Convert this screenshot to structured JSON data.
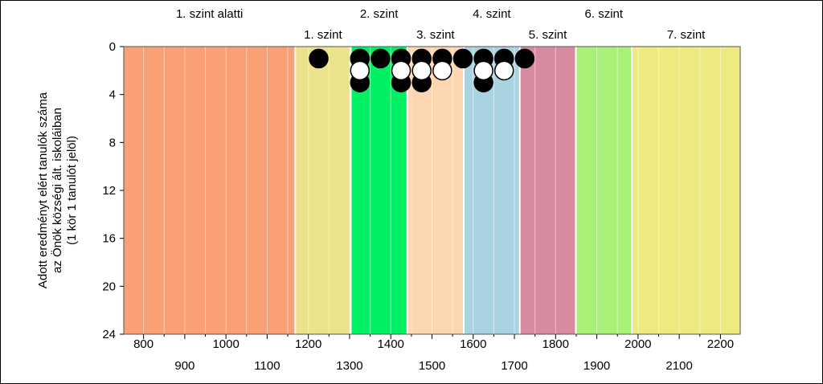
{
  "chart_data": {
    "type": "scatter",
    "ylabel_lines": [
      "Adott eredményt elért tanulók száma",
      "az Önök községi ált. iskoláiban",
      "(1 kör 1 tanulót jelöl)"
    ],
    "xlim": [
      752,
      2248
    ],
    "ylim": [
      0,
      24
    ],
    "y_inverted": true,
    "y_ticks": [
      0,
      4,
      8,
      12,
      16,
      20,
      24
    ],
    "x_ticks_upper": [
      800,
      1000,
      1200,
      1400,
      1600,
      1800,
      2000,
      2200
    ],
    "x_ticks_lower": [
      900,
      1100,
      1300,
      1500,
      1700,
      1900,
      2100
    ],
    "grid": "vertical",
    "levels": [
      {
        "label": "1. szint alatti",
        "from": 752,
        "to": 1168,
        "color": "#F9A074",
        "label_row": "top"
      },
      {
        "label": "1. szint",
        "from": 1168,
        "to": 1303,
        "color": "#EBE38B",
        "label_row": "bottom"
      },
      {
        "label": "2. szint",
        "from": 1303,
        "to": 1440,
        "color": "#00F064",
        "label_row": "top"
      },
      {
        "label": "3. szint",
        "from": 1440,
        "to": 1577,
        "color": "#FCD6B0",
        "label_row": "bottom"
      },
      {
        "label": "4. szint",
        "from": 1577,
        "to": 1713,
        "color": "#AAD3E1",
        "label_row": "top"
      },
      {
        "label": "5. szint",
        "from": 1713,
        "to": 1849,
        "color": "#D88AA0",
        "label_row": "bottom"
      },
      {
        "label": "6. szint",
        "from": 1849,
        "to": 1985,
        "color": "#A8F078",
        "label_row": "top"
      },
      {
        "label": "7. szint",
        "from": 1985,
        "to": 2248,
        "color": "#EDEA80",
        "label_row": "bottom"
      }
    ],
    "series": [
      {
        "marker": "filled",
        "color": "#000000",
        "points": [
          {
            "x": 1225,
            "y": 1
          },
          {
            "x": 1325,
            "y": 1
          },
          {
            "x": 1325,
            "y": 3
          },
          {
            "x": 1375,
            "y": 1
          },
          {
            "x": 1425,
            "y": 1
          },
          {
            "x": 1425,
            "y": 3
          },
          {
            "x": 1475,
            "y": 1
          },
          {
            "x": 1475,
            "y": 3
          },
          {
            "x": 1525,
            "y": 1
          },
          {
            "x": 1575,
            "y": 1
          },
          {
            "x": 1625,
            "y": 1
          },
          {
            "x": 1625,
            "y": 3
          },
          {
            "x": 1675,
            "y": 1
          },
          {
            "x": 1725,
            "y": 1
          }
        ]
      },
      {
        "marker": "open",
        "color": "#ffffff",
        "points": [
          {
            "x": 1325,
            "y": 2
          },
          {
            "x": 1425,
            "y": 2
          },
          {
            "x": 1475,
            "y": 2
          },
          {
            "x": 1525,
            "y": 2
          },
          {
            "x": 1625,
            "y": 2
          },
          {
            "x": 1675,
            "y": 2
          }
        ]
      }
    ]
  }
}
